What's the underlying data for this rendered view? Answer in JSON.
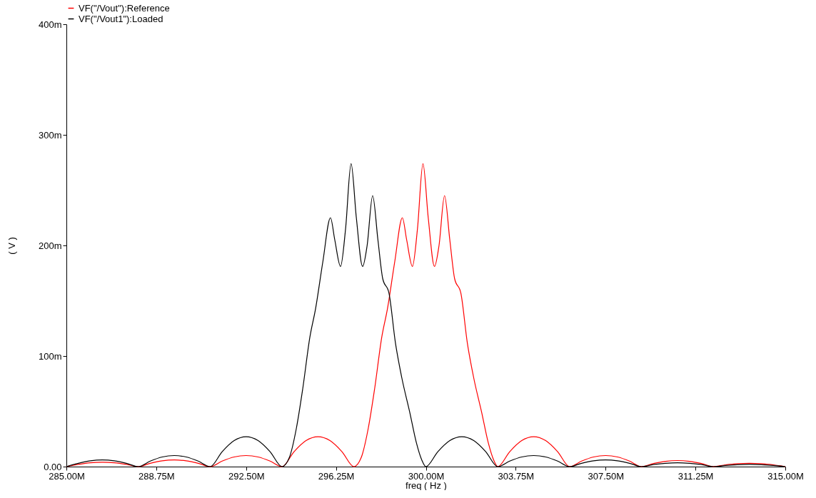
{
  "chart_data": {
    "type": "line",
    "xlabel": "freq ( Hz )",
    "ylabel": "( V )",
    "legend": "top left",
    "grid": false,
    "marker": "none",
    "line_style": "solid",
    "xlim": [
      285,
      315
    ],
    "ylim": [
      0,
      400
    ],
    "xticks": [
      {
        "value": 285,
        "label": "285.00M"
      },
      {
        "value": 288.75,
        "label": "288.75M"
      },
      {
        "value": 292.5,
        "label": "292.50M"
      },
      {
        "value": 296.25,
        "label": "296.25M"
      },
      {
        "value": 300,
        "label": "300.00M"
      },
      {
        "value": 303.75,
        "label": "303.75M"
      },
      {
        "value": 307.5,
        "label": "307.50M"
      },
      {
        "value": 311.25,
        "label": "311.25M"
      },
      {
        "value": 315,
        "label": "315.00M"
      }
    ],
    "yticks": [
      {
        "value": 0,
        "label": "0.00"
      },
      {
        "value": 100,
        "label": "100m"
      },
      {
        "value": 200,
        "label": "200m"
      },
      {
        "value": 300,
        "label": "300m"
      },
      {
        "value": 400,
        "label": "400m"
      }
    ],
    "series": [
      {
        "name": "VF(\"/Vout\"):Reference",
        "color": "#ff0000",
        "x": [
          285,
          285.5,
          286,
          286.5,
          287,
          287.5,
          288,
          288.5,
          289,
          289.5,
          290,
          290.5,
          291,
          291.5,
          292,
          292.5,
          293,
          293.5,
          294,
          294.5,
          295,
          295.5,
          296,
          296.5,
          297,
          297.3,
          297.6,
          297.86,
          298.16,
          298.4,
          298.7,
          299.02,
          299.2,
          299.44,
          299.65,
          299.88,
          300.1,
          300.36,
          300.55,
          300.78,
          301,
          301.2,
          301.46,
          301.73,
          302,
          302.33,
          302.6,
          302.83,
          303,
          303.5,
          304,
          304.5,
          305,
          305.5,
          306,
          306.5,
          307,
          307.5,
          308,
          308.5,
          309,
          309.5,
          310,
          310.5,
          311,
          311.5,
          312,
          312.5,
          313,
          313.5,
          314,
          314.5,
          315
        ],
        "values": [
          0,
          2,
          3.5,
          4,
          3.5,
          2,
          0,
          3,
          5.2,
          6,
          5.2,
          3,
          0,
          5,
          8.7,
          10,
          8.7,
          5,
          0,
          13.5,
          23.5,
          27,
          23.5,
          13.5,
          0,
          8,
          35,
          70,
          117,
          143,
          185,
          225,
          205,
          181,
          215,
          274,
          225,
          181,
          200,
          245,
          205,
          170,
          157,
          112,
          80,
          49,
          22,
          6,
          0,
          13.5,
          23.5,
          27,
          23.5,
          13.5,
          0,
          5,
          8.7,
          10,
          8.7,
          5,
          0,
          2.8,
          4.8,
          5.5,
          4.8,
          2.8,
          0,
          1.5,
          2.6,
          3,
          2.6,
          1.5,
          0
        ]
      },
      {
        "name": "VF(\"/Vout1\"):Loaded",
        "color": "#000000",
        "x": [
          285,
          285.5,
          286,
          286.5,
          287,
          287.5,
          288,
          288.5,
          289,
          289.5,
          290,
          290.5,
          291,
          291.5,
          292,
          292.5,
          293,
          293.5,
          294,
          294.3,
          294.6,
          294.86,
          295.16,
          295.4,
          295.7,
          296.02,
          296.2,
          296.44,
          296.65,
          296.88,
          297.1,
          297.36,
          297.55,
          297.78,
          298,
          298.2,
          298.46,
          298.73,
          299,
          299.33,
          299.6,
          299.83,
          300,
          300.5,
          301,
          301.5,
          302,
          302.5,
          303,
          303.5,
          304,
          304.5,
          305,
          305.5,
          306,
          306.5,
          307,
          307.5,
          308,
          308.5,
          309,
          309.5,
          310,
          310.5,
          311,
          311.5,
          312,
          312.5,
          313,
          313.5,
          314,
          314.5,
          315
        ],
        "values": [
          0,
          3,
          5.2,
          6,
          5.2,
          3,
          0,
          5,
          8.7,
          10,
          8.7,
          5,
          0,
          13.5,
          23.5,
          27,
          23.5,
          13.5,
          0,
          8,
          35,
          70,
          117,
          143,
          185,
          225,
          205,
          181,
          215,
          274,
          225,
          181,
          200,
          245,
          205,
          170,
          157,
          112,
          80,
          49,
          22,
          6,
          0,
          13.5,
          23.5,
          27,
          23.5,
          13.5,
          0,
          5,
          8.7,
          10,
          8.7,
          5,
          0,
          3,
          5.2,
          6,
          5.2,
          3,
          0,
          1.8,
          3,
          3.5,
          3,
          1.8,
          0,
          1,
          1.7,
          2,
          1.7,
          1,
          0
        ]
      }
    ]
  }
}
